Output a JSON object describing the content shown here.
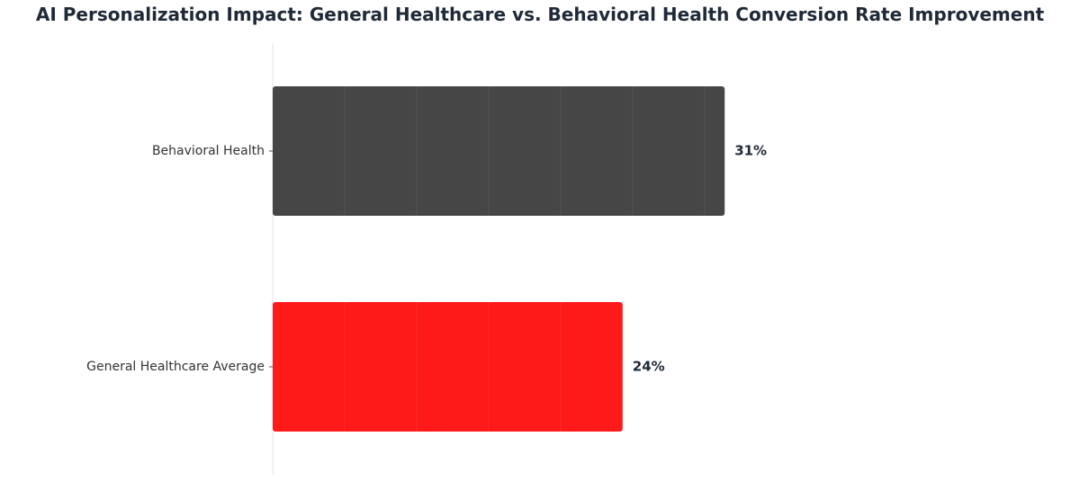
{
  "chart_data": {
    "type": "bar",
    "orientation": "horizontal",
    "title": "AI Personalization Impact: General Healthcare vs. Behavioral Health Conversion Rate Improvement",
    "xlabel": "",
    "ylabel": "",
    "categories": [
      "Behavioral Health",
      "General Healthcare Average"
    ],
    "values": [
      31,
      24
    ],
    "value_labels": [
      "31%",
      "24%"
    ],
    "colors": [
      "#464646",
      "#ff1a1a"
    ],
    "xlim": [
      0,
      50
    ],
    "grid": false,
    "legend": "none"
  }
}
